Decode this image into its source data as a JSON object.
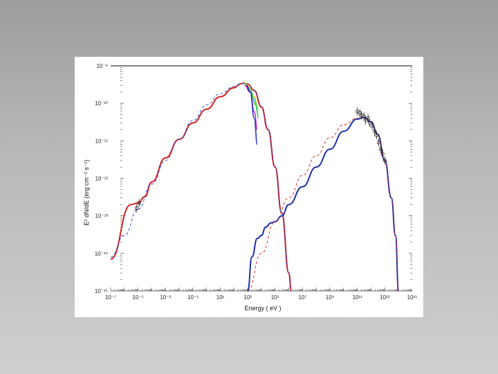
{
  "chart_data": {
    "type": "line",
    "xlabel": "Energy ( eV )",
    "ylabel": "E² dN/dE (erg cm⁻² s⁻¹)",
    "x_scale": "log",
    "y_scale": "log",
    "xlim": [
      1e-07,
      1000000000000000.0
    ],
    "ylim": [
      1e-15,
      1e-09
    ],
    "x_ticks": [
      {
        "value": 1e-07,
        "label": "10⁻⁷"
      },
      {
        "value": 1e-05,
        "label": "10⁻⁵"
      },
      {
        "value": 0.001,
        "label": "10⁻³"
      },
      {
        "value": 0.1,
        "label": "10⁻¹"
      },
      {
        "value": 10.0,
        "label": "10¹"
      },
      {
        "value": 1000.0,
        "label": "10³"
      },
      {
        "value": 100000.0,
        "label": "10⁵"
      },
      {
        "value": 10000000.0,
        "label": "10⁷"
      },
      {
        "value": 1000000000.0,
        "label": "10⁹"
      },
      {
        "value": 100000000000.0,
        "label": "10¹¹"
      },
      {
        "value": 10000000000000.0,
        "label": "10¹³"
      },
      {
        "value": 1000000000000000.0,
        "label": "10¹⁵"
      }
    ],
    "y_ticks": [
      {
        "value": 1e-09,
        "label": "10⁻⁹"
      },
      {
        "value": 1e-10,
        "label": "10⁻¹⁰"
      },
      {
        "value": 1e-11,
        "label": "10⁻¹¹"
      },
      {
        "value": 1e-12,
        "label": "10⁻¹²"
      },
      {
        "value": 1e-13,
        "label": "10⁻¹³"
      },
      {
        "value": 1e-14,
        "label": "10⁻¹⁴"
      },
      {
        "value": 1e-15,
        "label": "10⁻¹⁵"
      }
    ],
    "series": [
      {
        "kind": "solid",
        "color": "#d42020",
        "points": [
          [
            1e-07,
            7e-15
          ],
          [
            3e-06,
            2e-13
          ],
          [
            1e-05,
            2.2e-13
          ],
          [
            3e-05,
            3.2e-13
          ],
          [
            0.0001,
            8e-13
          ],
          [
            0.001,
            3.5e-12
          ],
          [
            0.01,
            1.1e-11
          ],
          [
            0.1,
            3e-11
          ],
          [
            1,
            7e-11
          ],
          [
            10,
            1.5e-10
          ],
          [
            100,
            2.6e-10
          ],
          [
            300,
            3.3e-10
          ],
          [
            600,
            3.5e-10
          ],
          [
            1000,
            3.2e-10
          ],
          [
            3000,
            2.2e-10
          ],
          [
            10000,
            8e-11
          ],
          [
            30000,
            2e-11
          ],
          [
            100000,
            2e-12
          ],
          [
            300000,
            1.2e-13
          ],
          [
            1000000,
            3e-15
          ],
          [
            1500000.0,
            1e-15
          ]
        ]
      },
      {
        "kind": "dashed",
        "color": "#2040d0",
        "points": [
          [
            1e-07,
            8e-15
          ],
          [
            1e-06,
            3e-14
          ],
          [
            1e-05,
            1.5e-13
          ],
          [
            0.0001,
            7e-13
          ],
          [
            0.001,
            3e-12
          ],
          [
            0.01,
            1.1e-11
          ],
          [
            0.1,
            3.5e-11
          ],
          [
            1,
            9e-11
          ],
          [
            10,
            1.8e-10
          ],
          [
            100,
            2.8e-10
          ],
          [
            300,
            3.3e-10
          ],
          [
            600,
            3.5e-10
          ],
          [
            1000,
            3.3e-10
          ],
          [
            3000,
            2.2e-10
          ],
          [
            10000,
            8e-11
          ],
          [
            30000,
            2e-11
          ],
          [
            100000,
            2e-12
          ],
          [
            300000,
            1.2e-13
          ],
          [
            1000000,
            3e-15
          ],
          [
            1500000.0,
            1e-15
          ]
        ]
      },
      {
        "kind": "solid",
        "color": "#1c2ea8",
        "points": [
          [
            1000.0,
            1e-15
          ],
          [
            2000.0,
            8e-15
          ],
          [
            5000.0,
            2.5e-14
          ],
          [
            10000.0,
            3e-14
          ],
          [
            20000.0,
            5e-14
          ],
          [
            50000.0,
            6.5e-14
          ],
          [
            100000.0,
            7e-14
          ],
          [
            300000.0,
            1e-13
          ],
          [
            1000000.0,
            2e-13
          ],
          [
            10000000.0,
            6e-13
          ],
          [
            100000000.0,
            2e-12
          ],
          [
            1000000000.0,
            6e-12
          ],
          [
            10000000000.0,
            1.8e-11
          ],
          [
            100000000000.0,
            3.8e-11
          ],
          [
            300000000000.0,
            4.2e-11
          ],
          [
            1000000000000.0,
            3.2e-11
          ],
          [
            3000000000000.0,
            1.5e-11
          ],
          [
            10000000000000.0,
            3e-12
          ],
          [
            30000000000000.0,
            3e-13
          ],
          [
            60000000000000.0,
            3e-14
          ],
          [
            100000000000000.0,
            1e-15
          ]
        ]
      },
      {
        "kind": "dashed",
        "color": "#d42020",
        "points": [
          [
            1000.0,
            1e-15
          ],
          [
            10000.0,
            1e-14
          ],
          [
            100000.0,
            7e-14
          ],
          [
            1000000.0,
            3e-13
          ],
          [
            10000000.0,
            1.2e-12
          ],
          [
            100000000.0,
            4e-12
          ],
          [
            1000000000.0,
            1.2e-11
          ],
          [
            10000000000.0,
            2.7e-11
          ],
          [
            100000000000.0,
            4e-11
          ],
          [
            300000000000.0,
            4.2e-11
          ],
          [
            1000000000000.0,
            3.3e-11
          ],
          [
            3000000000000.0,
            1.5e-11
          ],
          [
            10000000000000.0,
            3e-12
          ],
          [
            30000000000000.0,
            3e-13
          ],
          [
            60000000000000.0,
            3e-14
          ],
          [
            100000000000000.0,
            1e-15
          ]
        ]
      },
      {
        "kind": "data",
        "color": "#ffd21a",
        "points": [
          [
            500,
            3.7e-10
          ],
          [
            1000,
            3e-10
          ],
          [
            3000,
            1.5e-10
          ],
          [
            6000,
            7e-11
          ]
        ]
      },
      {
        "kind": "data",
        "color": "#22d0d0",
        "points": [
          [
            500,
            3.3e-10
          ],
          [
            1000,
            2.7e-10
          ],
          [
            3000,
            1.3e-10
          ],
          [
            6000,
            5e-11
          ]
        ]
      },
      {
        "kind": "data",
        "color": "#40d040",
        "points": [
          [
            600,
            3.1e-10
          ],
          [
            1500,
            2.2e-10
          ],
          [
            4000,
            9e-11
          ],
          [
            6000,
            4e-11
          ]
        ]
      },
      {
        "kind": "data",
        "color": "#d020d0",
        "points": [
          [
            600,
            3e-10
          ],
          [
            1500,
            2e-10
          ],
          [
            3000,
            6e-11
          ],
          [
            5000,
            2e-11
          ]
        ]
      },
      {
        "kind": "data",
        "color": "#2830c0",
        "points": [
          [
            800,
            3e-10
          ],
          [
            1500,
            2e-10
          ],
          [
            3000,
            4e-11
          ],
          [
            5000,
            8e-12
          ]
        ]
      }
    ],
    "data_points": [
      {
        "x": 1.2e-05,
        "y": 2.2e-13,
        "marker": "square"
      },
      {
        "x": 8e-06,
        "y": 1.6e-13,
        "marker": "square"
      },
      {
        "x": 100000000000.0,
        "y": 6e-11,
        "marker": "circle"
      },
      {
        "x": 150000000000.0,
        "y": 5.5e-11,
        "marker": "circle"
      },
      {
        "x": 200000000000.0,
        "y": 4.8e-11,
        "marker": "circle"
      },
      {
        "x": 300000000000.0,
        "y": 4.5e-11,
        "marker": "circle"
      },
      {
        "x": 400000000000.0,
        "y": 3.5e-11,
        "marker": "circle"
      },
      {
        "x": 600000000000.0,
        "y": 4e-11,
        "marker": "circle"
      },
      {
        "x": 800000000000.0,
        "y": 3e-11,
        "marker": "circle"
      },
      {
        "x": 1200000000000.0,
        "y": 2.5e-11,
        "marker": "circle"
      },
      {
        "x": 1800000000000.0,
        "y": 1.8e-11,
        "marker": "circle"
      },
      {
        "x": 2500000000000.0,
        "y": 1.4e-11,
        "marker": "circle"
      },
      {
        "x": 3500000000000.0,
        "y": 9e-12,
        "marker": "circle"
      },
      {
        "x": 5000000000000.0,
        "y": 6e-12,
        "marker": "circle"
      },
      {
        "x": 7000000000000.0,
        "y": 4.5e-12,
        "marker": "circle"
      },
      {
        "x": 10000000000000.0,
        "y": 3e-12,
        "marker": "circle"
      }
    ],
    "top_line": {
      "y": 1e-09,
      "color": "#000000"
    }
  }
}
